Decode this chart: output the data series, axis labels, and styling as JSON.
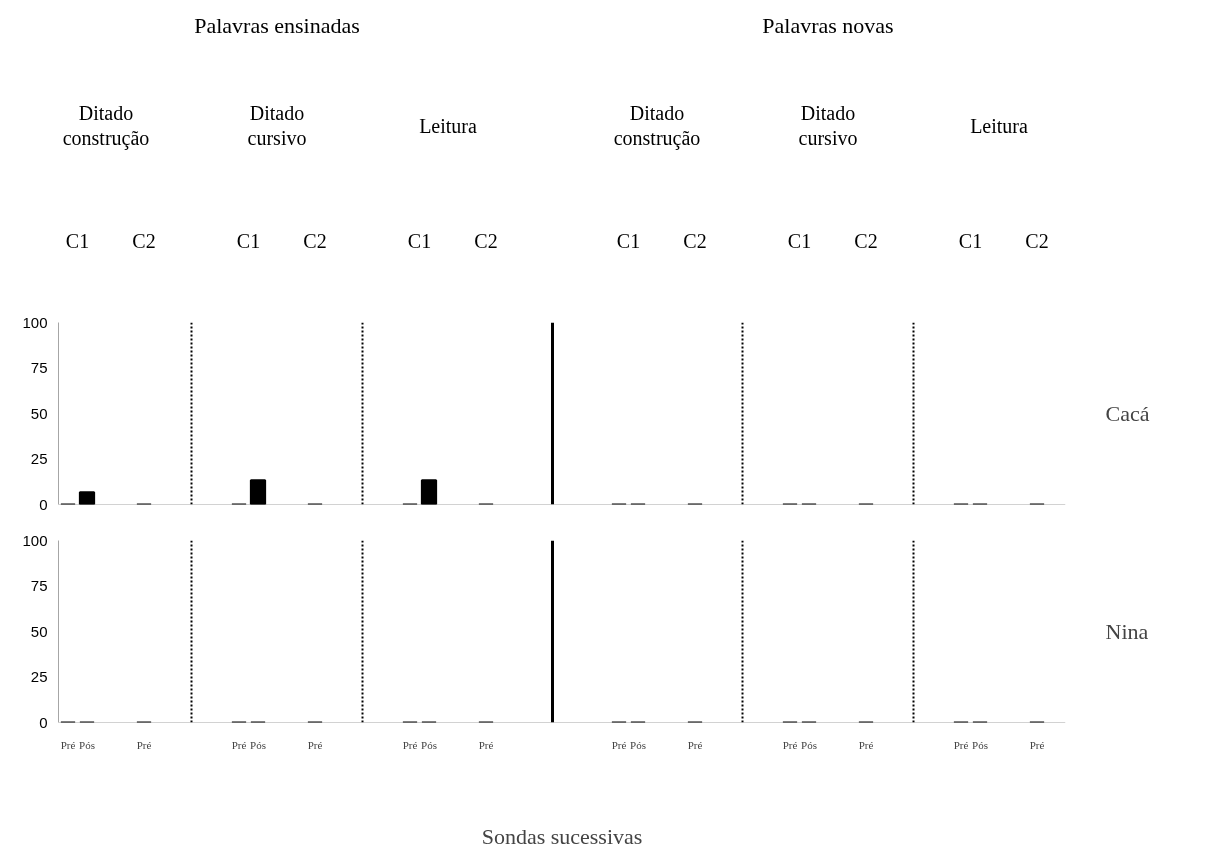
{
  "chart_data": [
    {
      "type": "bar",
      "y2label": "Cacá",
      "annotations": [
        "Palavras ensinadas",
        "Palavras novas",
        "Ditado construção",
        "Ditado cursivo",
        "Leitura",
        "Ditado construção",
        "Ditado cursivo",
        "Leitura",
        "C1",
        "C2",
        "C1",
        "C2",
        "C1",
        "C2",
        "C1",
        "C2",
        "C1",
        "C2",
        "C1",
        "C2"
      ],
      "categories": [
        null,
        null,
        null,
        null,
        null,
        null,
        null,
        null,
        null,
        null,
        null,
        null,
        null,
        null,
        null,
        null,
        null,
        null,
        null,
        null,
        null,
        null,
        null,
        null,
        null,
        null,
        null,
        null,
        null,
        null,
        null,
        null,
        null,
        null,
        null,
        null,
        null,
        null,
        null,
        null,
        null,
        null,
        null,
        null,
        null,
        null,
        null,
        null,
        null,
        null,
        null,
        null,
        null
      ],
      "series": [
        {
          "color": "#000000",
          "values": [
            0,
            6.7,
            null,
            null,
            0,
            null,
            null,
            null,
            null,
            0,
            13.3,
            null,
            null,
            0,
            null,
            null,
            null,
            null,
            0,
            13.3,
            null,
            null,
            0,
            null,
            null,
            null,
            null,
            null,
            null,
            0,
            0,
            null,
            null,
            0,
            null,
            null,
            null,
            null,
            0,
            0,
            null,
            null,
            0,
            null,
            null,
            null,
            null,
            0,
            0,
            null,
            null,
            0,
            null
          ]
        }
      ],
      "ylim": [
        0,
        100
      ],
      "yticks": [
        0,
        25,
        50,
        75,
        100
      ],
      "tick_labels": "y"
    },
    {
      "type": "bar",
      "y2label": "Nina",
      "xlabel": "Sondas sucessivas",
      "categories": [
        "Pré",
        "Pós",
        null,
        null,
        "Pré",
        null,
        null,
        null,
        null,
        "Pré",
        "Pós",
        null,
        null,
        "Pré",
        null,
        null,
        null,
        null,
        "Pré",
        "Pós",
        null,
        null,
        "Pré",
        null,
        null,
        null,
        null,
        null,
        null,
        "Pré",
        "Pós",
        null,
        null,
        "Pré",
        null,
        null,
        null,
        null,
        "Pré",
        "Pós",
        null,
        null,
        "Pré",
        null,
        null,
        null,
        null,
        "Pré",
        "Pós",
        null,
        null,
        "Pré",
        null
      ],
      "series": [
        {
          "color": "#000000",
          "values": [
            0,
            0,
            null,
            null,
            0,
            null,
            null,
            null,
            null,
            0,
            0,
            null,
            null,
            0,
            null,
            null,
            null,
            null,
            0,
            0,
            null,
            null,
            0,
            null,
            null,
            null,
            null,
            null,
            null,
            0,
            0,
            null,
            null,
            0,
            null,
            null,
            null,
            null,
            0,
            0,
            null,
            null,
            0,
            null,
            null,
            null,
            null,
            0,
            0,
            null,
            null,
            0,
            null
          ]
        }
      ],
      "ylim": [
        0,
        100
      ],
      "yticks": [
        0,
        25,
        50,
        75,
        100
      ]
    }
  ]
}
